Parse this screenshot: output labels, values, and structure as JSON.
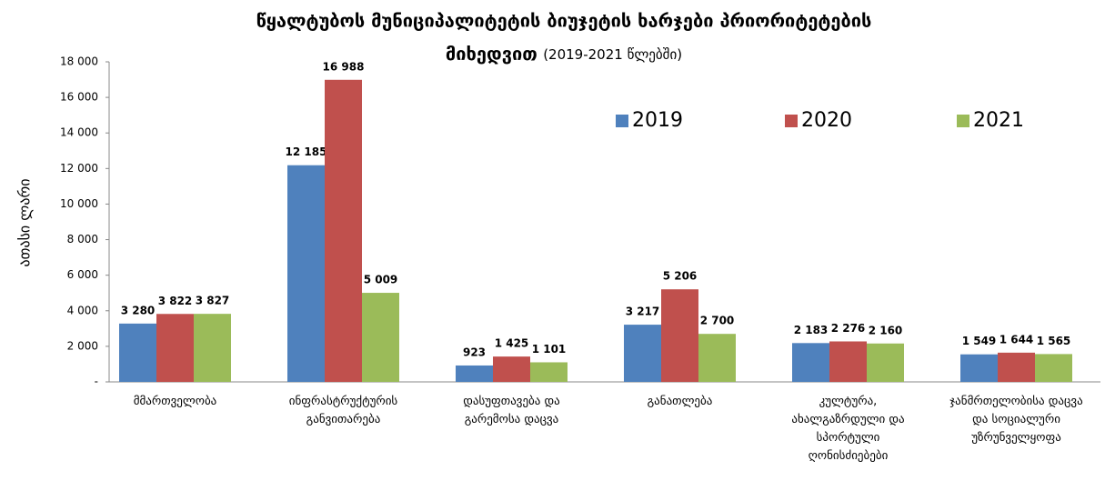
{
  "chart_data": {
    "type": "bar",
    "title": [
      "წყალტუბოს მუნიციპალიტეტის  ბიუჯეტის ხარჯები  პრიორიტეტების",
      "მიხედვით"
    ],
    "subtitle": "(2019-2021 წლებში)",
    "y_label": "ათასი ლარი",
    "categories": [
      "მმართველობა",
      "ინფრასტრუქტურის განვითარება",
      "დასუფთავება და გარემოსა დაცვა",
      "განათლება",
      "კულტურა, ახალგაზრდული და სპორტული ღონისძიებები",
      "ჯანმრთელობისა დაცვა და სოციალური უზრუნველყოფა"
    ],
    "series": [
      {
        "name": "2019",
        "color": "#4f81bd",
        "values": [
          3280,
          12185,
          923,
          3217,
          2183,
          1549
        ],
        "value_labels": [
          "3 280",
          "12 185",
          "923",
          "3 217",
          "2 183",
          "1 549"
        ]
      },
      {
        "name": "2020",
        "color": "#c0504d",
        "values": [
          3822,
          16988,
          1425,
          5206,
          2276,
          1644
        ],
        "value_labels": [
          "3 822",
          "16 988",
          "1 425",
          "5 206",
          "2 276",
          "1 644"
        ]
      },
      {
        "name": "2021",
        "color": "#9bbb59",
        "values": [
          3827,
          5009,
          1101,
          2700,
          2160,
          1565
        ],
        "value_labels": [
          "3 827",
          "5 009",
          "1 101",
          "2 700",
          "2 160",
          "1 565"
        ]
      }
    ],
    "ylim": [
      0,
      18000
    ],
    "yticks": [
      {
        "value": 0,
        "label": "-"
      },
      {
        "value": 2000,
        "label": "2 000"
      },
      {
        "value": 4000,
        "label": "4 000"
      },
      {
        "value": 6000,
        "label": "6 000"
      },
      {
        "value": 8000,
        "label": "8 000"
      },
      {
        "value": 10000,
        "label": "10 000"
      },
      {
        "value": 12000,
        "label": "12 000"
      },
      {
        "value": 14000,
        "label": "14 000"
      },
      {
        "value": 16000,
        "label": "16 000"
      },
      {
        "value": 18000,
        "label": "18 000"
      }
    ],
    "legend": "top-right"
  }
}
